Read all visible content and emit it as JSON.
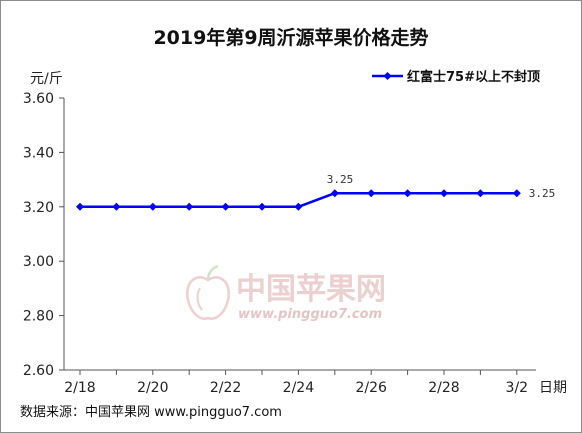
{
  "chart_data": {
    "type": "line",
    "title": "2019年第9周沂源苹果价格走势",
    "y_unit": "元/斤",
    "x_unit": "日期",
    "categories": [
      "2/18",
      "2/19",
      "2/20",
      "2/21",
      "2/22",
      "2/23",
      "2/24",
      "2/25",
      "2/26",
      "2/27",
      "2/28",
      "3/1",
      "3/2"
    ],
    "x_tick_labels": [
      "2/18",
      "2/20",
      "2/22",
      "2/24",
      "2/26",
      "2/28",
      "3/2"
    ],
    "y_ticks": [
      "3.60",
      "3.40",
      "3.20",
      "3.00",
      "2.80",
      "2.60"
    ],
    "ylim": [
      2.6,
      3.6
    ],
    "series": [
      {
        "name": "红富士75#以上不封顶",
        "values": [
          3.2,
          3.2,
          3.2,
          3.2,
          3.2,
          3.2,
          3.2,
          3.25,
          3.25,
          3.25,
          3.25,
          3.25,
          3.25
        ],
        "color": "#0000ff"
      }
    ],
    "data_labels": [
      {
        "index": 7,
        "text": "3.25"
      },
      {
        "index": 12,
        "text": "3.25"
      }
    ],
    "legend_position": "top-right",
    "grid": false
  },
  "watermark": {
    "name": "中国苹果网",
    "url": "www.pingguo7.com"
  },
  "source": "数据来源：中国苹果网 www.pingguo7.com"
}
